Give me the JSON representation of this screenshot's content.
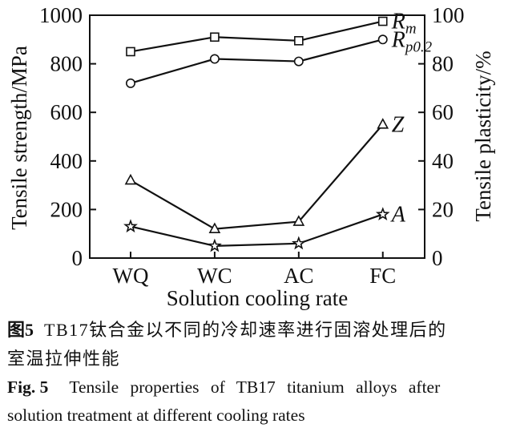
{
  "chart_data": {
    "type": "line",
    "categories": [
      "WQ",
      "WC",
      "AC",
      "FC"
    ],
    "xlabel": "Solution cooling rate",
    "left_axis": {
      "label": "Tensile strength/MPa",
      "ticks": [
        0,
        200,
        400,
        600,
        800,
        1000
      ],
      "ylim": [
        0,
        1000
      ]
    },
    "right_axis": {
      "label": "Tensile plasticity/%",
      "ticks": [
        0,
        20,
        40,
        60,
        80,
        100
      ],
      "ylim": [
        0,
        100
      ]
    },
    "grid": false,
    "line_color": "#111111",
    "marker_fill": "#ffffff",
    "legend_position": "labels at line ends",
    "series": [
      {
        "id": "rm",
        "name": "Rm",
        "label_main": "R",
        "label_sub": "m",
        "axis": "left",
        "marker": "square",
        "values": [
          850,
          910,
          895,
          975
        ]
      },
      {
        "id": "rp02",
        "name": "Rp0.2",
        "label_main": "R",
        "label_sub": "p0.2",
        "axis": "left",
        "marker": "circle",
        "values": [
          720,
          820,
          810,
          900
        ]
      },
      {
        "id": "z",
        "name": "Z",
        "label_main": "Z",
        "label_sub": "",
        "axis": "right",
        "marker": "triangle",
        "values": [
          32,
          12,
          15,
          55
        ]
      },
      {
        "id": "a",
        "name": "A",
        "label_main": "A",
        "label_sub": "",
        "axis": "right",
        "marker": "star",
        "values": [
          13,
          5,
          6,
          18
        ]
      }
    ]
  },
  "caption_cn": {
    "label": "图5",
    "line1": "TB17钛合金以不同的冷却速率进行固溶处理后的",
    "line2": "室温拉伸性能"
  },
  "caption_en": {
    "label": "Fig. 5",
    "line1": "Tensile properties of TB17 titanium alloys after",
    "line2": "solution treatment at different cooling rates"
  }
}
